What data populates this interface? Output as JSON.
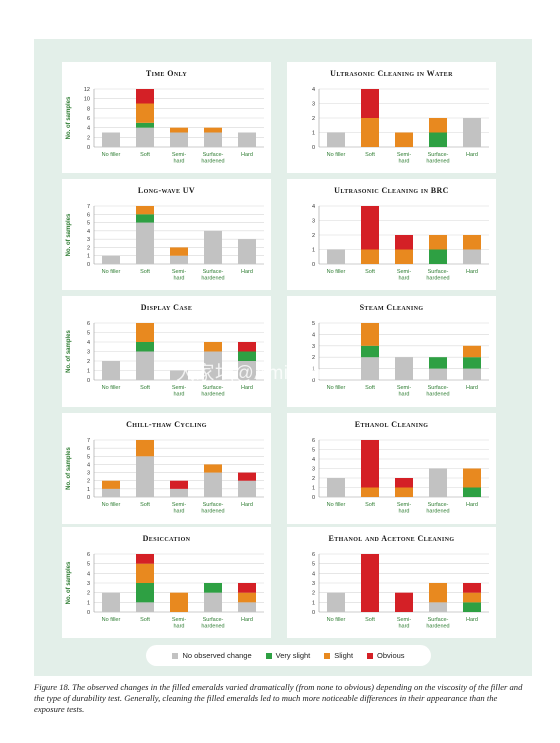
{
  "colors": {
    "none": "#c2c2c2",
    "very_slight": "#2ea043",
    "slight": "#e8891f",
    "obvious": "#d42026",
    "axis_text": "#2e7d32",
    "panel_bg": "#e3efe9"
  },
  "legend": [
    {
      "key": "none",
      "label": "No observed change"
    },
    {
      "key": "very_slight",
      "label": "Very slight"
    },
    {
      "key": "slight",
      "label": "Slight"
    },
    {
      "key": "obvious",
      "label": "Obvious"
    }
  ],
  "caption": "Figure 18. The observed changes in the filled emeralds varied dramatically (from none to obvious) depending on the viscosity of the filler and the type of durability test. Generally, cleaning the filled emeralds led to much more noticeable differences in their appearance than the exposure tests.",
  "watermark": "大家坛@Aminah",
  "chart_data": [
    {
      "type": "bar",
      "stacked": true,
      "title": "Time Only",
      "ylabel": "No. of samples",
      "ylim": [
        0,
        12
      ],
      "yticks": [
        0,
        2,
        4,
        6,
        8,
        10,
        12
      ],
      "categories": [
        "No filler",
        "Soft",
        "Semi-hard",
        "Surface-hardened",
        "Hard"
      ],
      "series": [
        {
          "key": "none",
          "name": "No observed change",
          "values": [
            3,
            4,
            3,
            3,
            3
          ]
        },
        {
          "key": "very_slight",
          "name": "Very slight",
          "values": [
            0,
            1,
            0,
            0,
            0
          ]
        },
        {
          "key": "slight",
          "name": "Slight",
          "values": [
            0,
            4,
            1,
            1,
            0
          ]
        },
        {
          "key": "obvious",
          "name": "Obvious",
          "values": [
            0,
            3,
            0,
            0,
            0
          ]
        }
      ]
    },
    {
      "type": "bar",
      "stacked": true,
      "title": "Ultrasonic Cleaning in Water",
      "ylabel": "",
      "ylim": [
        0,
        4
      ],
      "yticks": [
        0,
        1,
        2,
        3,
        4
      ],
      "categories": [
        "No filler",
        "Soft",
        "Semi-hard",
        "Surface-hardened",
        "Hard"
      ],
      "series": [
        {
          "key": "none",
          "name": "No observed change",
          "values": [
            1,
            0,
            0,
            0,
            2
          ]
        },
        {
          "key": "very_slight",
          "name": "Very slight",
          "values": [
            0,
            0,
            0,
            1,
            0
          ]
        },
        {
          "key": "slight",
          "name": "Slight",
          "values": [
            0,
            2,
            1,
            1,
            0
          ]
        },
        {
          "key": "obvious",
          "name": "Obvious",
          "values": [
            0,
            2,
            0,
            0,
            0
          ]
        }
      ]
    },
    {
      "type": "bar",
      "stacked": true,
      "title": "Long-wave UV",
      "ylabel": "No. of samples",
      "ylim": [
        0,
        7
      ],
      "yticks": [
        0,
        1,
        2,
        3,
        4,
        5,
        6,
        7
      ],
      "categories": [
        "No filler",
        "Soft",
        "Semi-hard",
        "Surface-hardened",
        "Hard"
      ],
      "series": [
        {
          "key": "none",
          "name": "No observed change",
          "values": [
            1,
            5,
            1,
            4,
            3
          ]
        },
        {
          "key": "very_slight",
          "name": "Very slight",
          "values": [
            0,
            1,
            0,
            0,
            0
          ]
        },
        {
          "key": "slight",
          "name": "Slight",
          "values": [
            0,
            1,
            1,
            0,
            0
          ]
        },
        {
          "key": "obvious",
          "name": "Obvious",
          "values": [
            0,
            0,
            0,
            0,
            0
          ]
        }
      ]
    },
    {
      "type": "bar",
      "stacked": true,
      "title": "Ultrasonic Cleaning in BRC",
      "ylabel": "",
      "ylim": [
        0,
        4
      ],
      "yticks": [
        0,
        1,
        2,
        3,
        4
      ],
      "categories": [
        "No filler",
        "Soft",
        "Semi-hard",
        "Surface-hardened",
        "Hard"
      ],
      "series": [
        {
          "key": "none",
          "name": "No observed change",
          "values": [
            1,
            0,
            0,
            0,
            1
          ]
        },
        {
          "key": "very_slight",
          "name": "Very slight",
          "values": [
            0,
            0,
            0,
            1,
            0
          ]
        },
        {
          "key": "slight",
          "name": "Slight",
          "values": [
            0,
            1,
            1,
            1,
            1
          ]
        },
        {
          "key": "obvious",
          "name": "Obvious",
          "values": [
            0,
            3,
            1,
            0,
            0
          ]
        }
      ]
    },
    {
      "type": "bar",
      "stacked": true,
      "title": "Display Case",
      "ylabel": "No. of samples",
      "ylim": [
        0,
        6
      ],
      "yticks": [
        0,
        1,
        2,
        3,
        4,
        5,
        6
      ],
      "categories": [
        "No filler",
        "Soft",
        "Semi-hard",
        "Surface-hardened",
        "Hard"
      ],
      "series": [
        {
          "key": "none",
          "name": "No observed change",
          "values": [
            2,
            3,
            1,
            3,
            2
          ]
        },
        {
          "key": "very_slight",
          "name": "Very slight",
          "values": [
            0,
            1,
            0,
            0,
            1
          ]
        },
        {
          "key": "slight",
          "name": "Slight",
          "values": [
            0,
            2,
            0,
            1,
            0
          ]
        },
        {
          "key": "obvious",
          "name": "Obvious",
          "values": [
            0,
            0,
            0,
            0,
            1
          ]
        }
      ]
    },
    {
      "type": "bar",
      "stacked": true,
      "title": "Steam Cleaning",
      "ylabel": "",
      "ylim": [
        0,
        5
      ],
      "yticks": [
        0,
        1,
        2,
        3,
        4,
        5
      ],
      "categories": [
        "No filler",
        "Soft",
        "Semi-hard",
        "Surface-hardened",
        "Hard"
      ],
      "series": [
        {
          "key": "none",
          "name": "No observed change",
          "values": [
            0,
            2,
            2,
            1,
            1
          ]
        },
        {
          "key": "very_slight",
          "name": "Very slight",
          "values": [
            0,
            1,
            0,
            1,
            1
          ]
        },
        {
          "key": "slight",
          "name": "Slight",
          "values": [
            0,
            2,
            0,
            0,
            1
          ]
        },
        {
          "key": "obvious",
          "name": "Obvious",
          "values": [
            0,
            0,
            0,
            0,
            0
          ]
        }
      ]
    },
    {
      "type": "bar",
      "stacked": true,
      "title": "Chill-thaw Cycling",
      "ylabel": "No. of samples",
      "ylim": [
        0,
        7
      ],
      "yticks": [
        0,
        1,
        2,
        3,
        4,
        5,
        6,
        7
      ],
      "categories": [
        "No filler",
        "Soft",
        "Semi-hard",
        "Surface-hardened",
        "Hard"
      ],
      "series": [
        {
          "key": "none",
          "name": "No observed change",
          "values": [
            1,
            5,
            1,
            3,
            2
          ]
        },
        {
          "key": "very_slight",
          "name": "Very slight",
          "values": [
            0,
            0,
            0,
            0,
            0
          ]
        },
        {
          "key": "slight",
          "name": "Slight",
          "values": [
            1,
            2,
            0,
            1,
            0
          ]
        },
        {
          "key": "obvious",
          "name": "Obvious",
          "values": [
            0,
            0,
            1,
            0,
            1
          ]
        }
      ]
    },
    {
      "type": "bar",
      "stacked": true,
      "title": "Ethanol Cleaning",
      "ylabel": "",
      "ylim": [
        0,
        6
      ],
      "yticks": [
        0,
        1,
        2,
        3,
        4,
        5,
        6
      ],
      "categories": [
        "No filler",
        "Soft",
        "Semi-hard",
        "Surface-hardened",
        "Hard"
      ],
      "series": [
        {
          "key": "none",
          "name": "No observed change",
          "values": [
            2,
            0,
            0,
            3,
            0
          ]
        },
        {
          "key": "very_slight",
          "name": "Very slight",
          "values": [
            0,
            0,
            0,
            0,
            1
          ]
        },
        {
          "key": "slight",
          "name": "Slight",
          "values": [
            0,
            1,
            1,
            0,
            2
          ]
        },
        {
          "key": "obvious",
          "name": "Obvious",
          "values": [
            0,
            5,
            1,
            0,
            0
          ]
        }
      ]
    },
    {
      "type": "bar",
      "stacked": true,
      "title": "Desiccation",
      "ylabel": "No. of samples",
      "ylim": [
        0,
        6
      ],
      "yticks": [
        0,
        1,
        2,
        3,
        4,
        5,
        6
      ],
      "categories": [
        "No filler",
        "Soft",
        "Semi-hard",
        "Surface-hardened",
        "Hard"
      ],
      "series": [
        {
          "key": "none",
          "name": "No observed change",
          "values": [
            2,
            1,
            0,
            2,
            1
          ]
        },
        {
          "key": "very_slight",
          "name": "Very slight",
          "values": [
            0,
            2,
            0,
            1,
            0
          ]
        },
        {
          "key": "slight",
          "name": "Slight",
          "values": [
            0,
            2,
            2,
            0,
            1
          ]
        },
        {
          "key": "obvious",
          "name": "Obvious",
          "values": [
            0,
            1,
            0,
            0,
            1
          ]
        }
      ]
    },
    {
      "type": "bar",
      "stacked": true,
      "title": "Ethanol and Acetone Cleaning",
      "ylabel": "",
      "ylim": [
        0,
        6
      ],
      "yticks": [
        0,
        1,
        2,
        3,
        4,
        5,
        6
      ],
      "categories": [
        "No filler",
        "Soft",
        "Semi-hard",
        "Surface-hardened",
        "Hard"
      ],
      "series": [
        {
          "key": "none",
          "name": "No observed change",
          "values": [
            2,
            0,
            0,
            1,
            0
          ]
        },
        {
          "key": "very_slight",
          "name": "Very slight",
          "values": [
            0,
            0,
            0,
            0,
            1
          ]
        },
        {
          "key": "slight",
          "name": "Slight",
          "values": [
            0,
            0,
            0,
            2,
            1
          ]
        },
        {
          "key": "obvious",
          "name": "Obvious",
          "values": [
            0,
            6,
            2,
            0,
            1
          ]
        }
      ]
    }
  ]
}
